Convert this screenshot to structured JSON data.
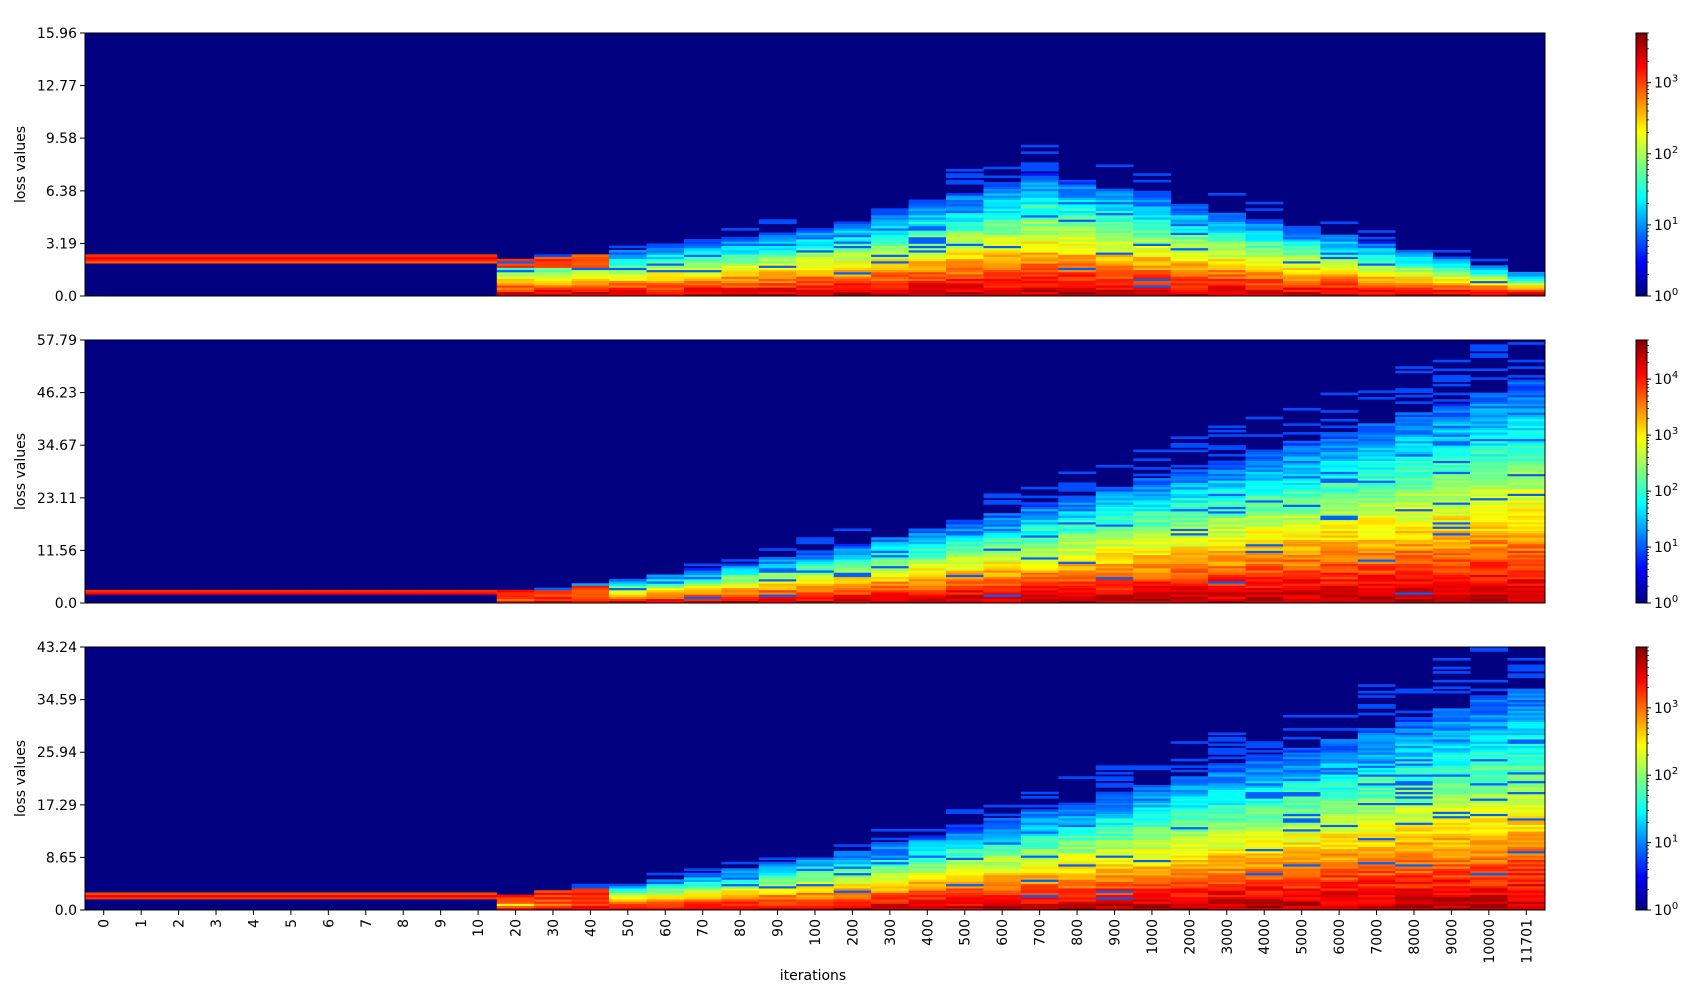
{
  "chart_data": {
    "type": "heatmap",
    "xlabel": "iterations",
    "x_categories": [
      "0",
      "1",
      "2",
      "3",
      "4",
      "5",
      "6",
      "7",
      "8",
      "9",
      "10",
      "20",
      "30",
      "40",
      "50",
      "60",
      "70",
      "80",
      "90",
      "100",
      "200",
      "300",
      "400",
      "500",
      "600",
      "700",
      "800",
      "900",
      "1000",
      "2000",
      "3000",
      "4000",
      "5000",
      "6000",
      "7000",
      "8000",
      "9000",
      "10000",
      "11701"
    ],
    "colormap": "jet",
    "colormap_stops": [
      "#00007f",
      "#0000ff",
      "#007fff",
      "#00ffff",
      "#7fff7f",
      "#ffff00",
      "#ff7f00",
      "#ff0000",
      "#7f0000"
    ],
    "panels": [
      {
        "ylabel": "loss values",
        "ylim": [
          0.0,
          15.96
        ],
        "yticks": [
          0.0,
          3.19,
          6.38,
          9.58,
          12.77,
          15.96
        ],
        "colorbar": {
          "scale": "log",
          "min": 1,
          "max": 5000,
          "tick_exponents": [
            0,
            1,
            2,
            3
          ]
        },
        "profile": {
          "early_level": 2.3,
          "early_width": 0.25,
          "spread_peak_iter_index": 25,
          "spread_max": 7.0,
          "tail_shrink": true
        }
      },
      {
        "ylabel": "loss values",
        "ylim": [
          0.0,
          57.79
        ],
        "yticks": [
          0.0,
          11.56,
          23.11,
          34.67,
          46.23,
          57.79
        ],
        "colorbar": {
          "scale": "log",
          "min": 1,
          "max": 50000,
          "tick_exponents": [
            0,
            1,
            2,
            3,
            4
          ]
        },
        "profile": {
          "early_level": 2.3,
          "early_width": 0.6,
          "spread_peak_iter_index": 38,
          "spread_max": 48.0,
          "tail_shrink": false
        }
      },
      {
        "ylabel": "loss values",
        "ylim": [
          0.0,
          43.24
        ],
        "yticks": [
          0.0,
          8.65,
          17.29,
          25.94,
          34.59,
          43.24
        ],
        "colorbar": {
          "scale": "log",
          "min": 1,
          "max": 8000,
          "tick_exponents": [
            0,
            1,
            2,
            3
          ]
        },
        "profile": {
          "early_level": 2.3,
          "early_width": 0.5,
          "spread_peak_iter_index": 38,
          "spread_max": 36.0,
          "tail_shrink": false
        }
      }
    ]
  }
}
